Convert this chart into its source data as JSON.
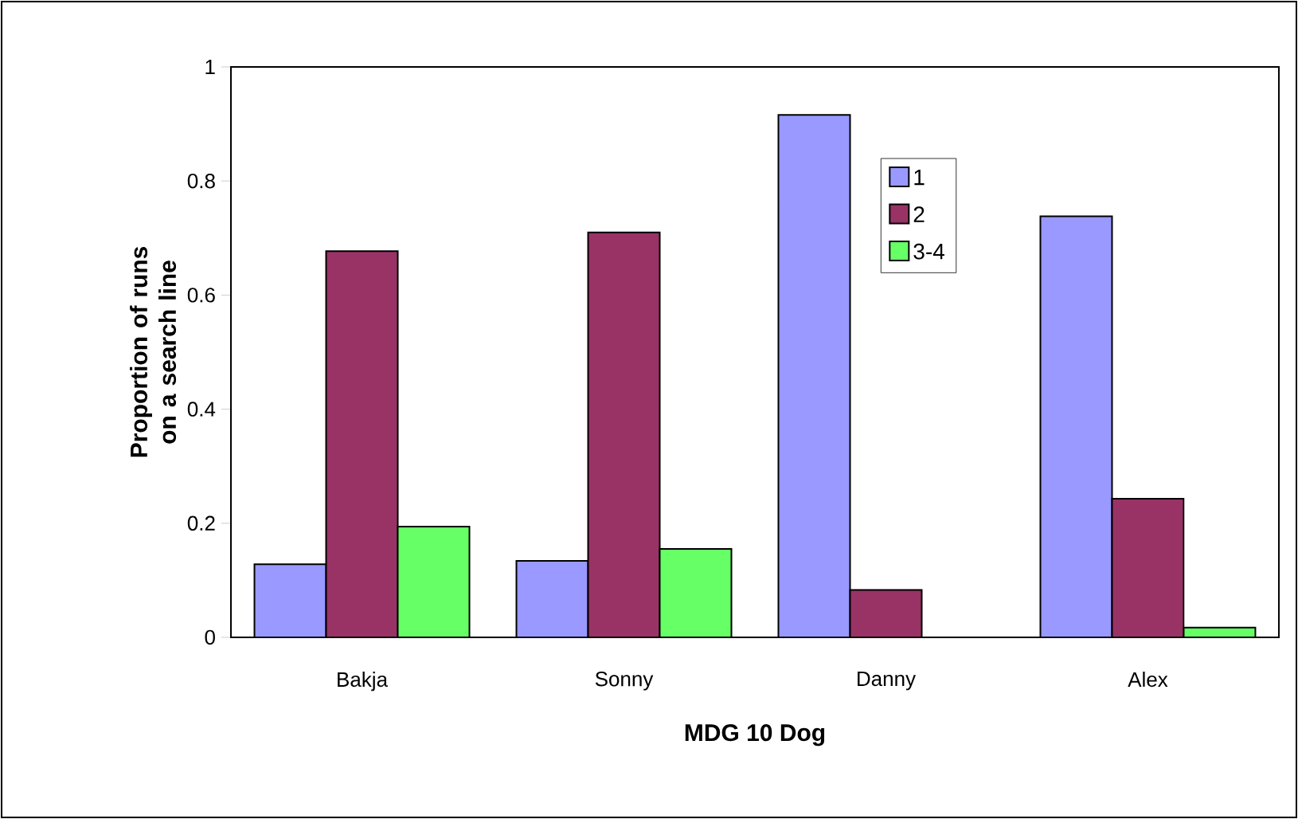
{
  "chart_data": {
    "type": "bar",
    "xlabel": "MDG 10 Dog",
    "ylabel": "Proportion of runs on a search line",
    "categories": [
      "Bakja",
      "Sonny",
      "Danny",
      "Alex"
    ],
    "series": [
      {
        "name": "1",
        "color": "#9999ff",
        "values": [
          0.128,
          0.134,
          0.916,
          0.738
        ]
      },
      {
        "name": "2",
        "color": "#993366",
        "values": [
          0.677,
          0.71,
          0.083,
          0.243
        ]
      },
      {
        "name": "3-4",
        "color": "#66ff66",
        "values": [
          0.194,
          0.155,
          0,
          0.017
        ]
      }
    ],
    "ylim": [
      0,
      1
    ],
    "yticks": [
      0,
      0.2,
      0.4,
      0.6,
      0.8,
      1
    ],
    "grid": false,
    "legend": "top right"
  }
}
